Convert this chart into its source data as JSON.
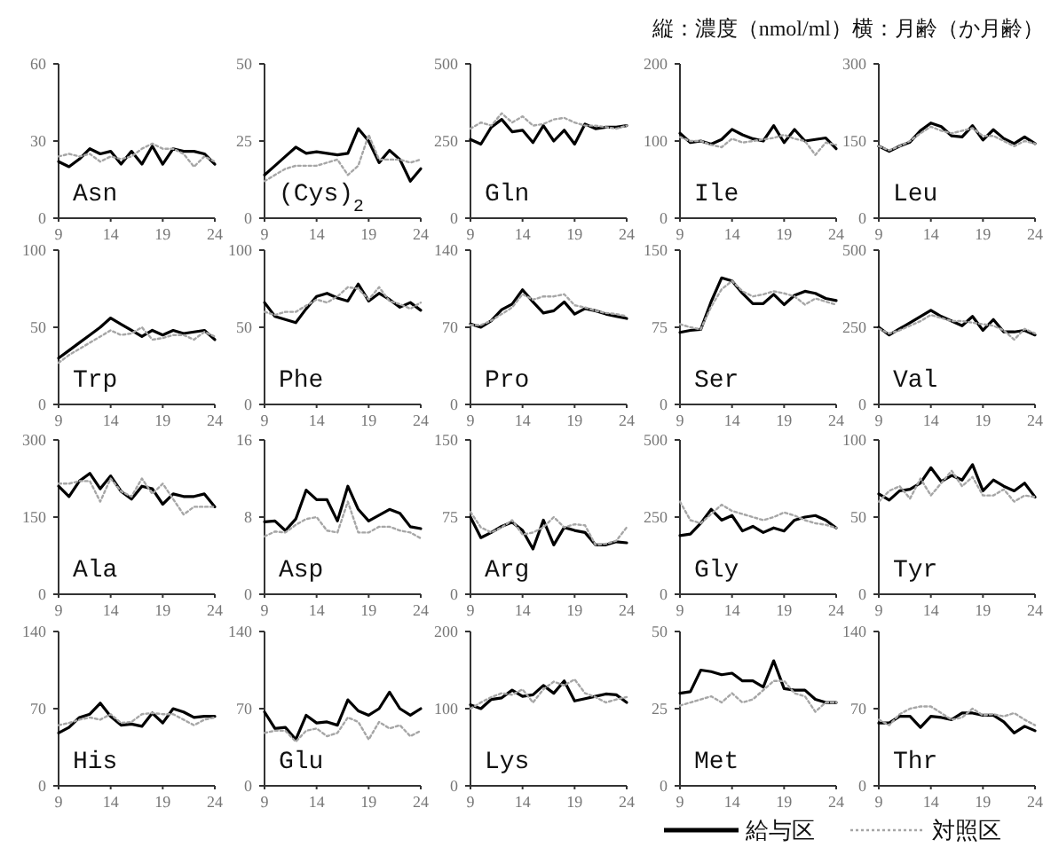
{
  "chart_data": [
    {
      "type": "line",
      "title": "Asn",
      "annotations": [
        "縦：濃度（nmol/ml）横：月齢（か月齢）"
      ],
      "x": [
        9,
        10,
        11,
        12,
        13,
        14,
        15,
        16,
        17,
        18,
        19,
        20,
        21,
        22,
        23,
        24
      ],
      "xlim": [
        9,
        24
      ],
      "xticks": [
        9,
        14,
        19,
        24
      ],
      "ylim": [
        0,
        60
      ],
      "yticks": [
        0,
        30,
        60
      ],
      "series": [
        {
          "color": "#000000",
          "line_style": "solid",
          "values": [
            22,
            20,
            23,
            27,
            25,
            26,
            21,
            26,
            21,
            28,
            21,
            27,
            26,
            26,
            25,
            21
          ]
        },
        {
          "color": "#a6a6a6",
          "line_style": "dotted",
          "values": [
            24,
            25,
            24,
            25,
            22,
            24,
            23,
            24,
            27,
            29,
            27,
            27,
            25,
            20,
            24,
            22
          ]
        }
      ]
    },
    {
      "type": "line",
      "title": "(Cys)$_{2}$",
      "x": [
        9,
        10,
        11,
        12,
        13,
        14,
        15,
        16,
        17,
        18,
        19,
        20,
        21,
        22,
        23,
        24
      ],
      "xlim": [
        9,
        24
      ],
      "xticks": [
        9,
        14,
        19,
        24
      ],
      "ylim": [
        0,
        50
      ],
      "yticks": [
        0,
        25,
        50
      ],
      "series": [
        {
          "color": "#000000",
          "line_style": "solid",
          "values": [
            14,
            17,
            20,
            23,
            21,
            21.5,
            21,
            20.5,
            21,
            29,
            25,
            18,
            22,
            19,
            12,
            16
          ]
        },
        {
          "color": "#a6a6a6",
          "line_style": "dotted",
          "values": [
            12,
            14,
            16,
            17,
            17,
            17,
            18,
            19,
            14,
            17,
            27,
            19,
            19,
            19,
            18,
            19
          ]
        }
      ]
    },
    {
      "type": "line",
      "title": "Gln",
      "x": [
        9,
        10,
        11,
        12,
        13,
        14,
        15,
        16,
        17,
        18,
        19,
        20,
        21,
        22,
        23,
        24
      ],
      "xlim": [
        9,
        24
      ],
      "xticks": [
        9,
        14,
        19,
        24
      ],
      "ylim": [
        0,
        500
      ],
      "yticks": [
        0,
        250,
        500
      ],
      "series": [
        {
          "color": "#000000",
          "line_style": "solid",
          "values": [
            255,
            240,
            295,
            320,
            280,
            285,
            245,
            300,
            250,
            285,
            240,
            305,
            290,
            295,
            295,
            300
          ]
        },
        {
          "color": "#a6a6a6",
          "line_style": "dotted",
          "values": [
            290,
            310,
            300,
            340,
            310,
            330,
            300,
            305,
            320,
            325,
            310,
            300,
            300,
            295,
            290,
            300
          ]
        }
      ]
    },
    {
      "type": "line",
      "title": "Ile",
      "x": [
        9,
        10,
        11,
        12,
        13,
        14,
        15,
        16,
        17,
        18,
        19,
        20,
        21,
        22,
        23,
        24
      ],
      "xlim": [
        9,
        24
      ],
      "xticks": [
        9,
        14,
        19,
        24
      ],
      "ylim": [
        0,
        200
      ],
      "yticks": [
        0,
        100,
        200
      ],
      "series": [
        {
          "color": "#000000",
          "line_style": "solid",
          "values": [
            110,
            98,
            100,
            96,
            102,
            115,
            108,
            103,
            100,
            120,
            98,
            115,
            100,
            102,
            104,
            90
          ]
        },
        {
          "color": "#a6a6a6",
          "line_style": "dotted",
          "values": [
            105,
            100,
            100,
            95,
            92,
            103,
            98,
            100,
            102,
            104,
            108,
            103,
            100,
            82,
            98,
            95
          ]
        }
      ]
    },
    {
      "type": "line",
      "title": "Leu",
      "x": [
        9,
        10,
        11,
        12,
        13,
        14,
        15,
        16,
        17,
        18,
        19,
        20,
        21,
        22,
        23,
        24
      ],
      "xlim": [
        9,
        24
      ],
      "xticks": [
        9,
        14,
        19,
        24
      ],
      "ylim": [
        0,
        300
      ],
      "yticks": [
        0,
        150,
        300
      ],
      "series": [
        {
          "color": "#000000",
          "line_style": "solid",
          "values": [
            140,
            130,
            140,
            148,
            170,
            185,
            178,
            160,
            158,
            180,
            152,
            172,
            155,
            145,
            158,
            145
          ]
        },
        {
          "color": "#a6a6a6",
          "line_style": "dotted",
          "values": [
            140,
            132,
            140,
            150,
            165,
            178,
            170,
            165,
            170,
            175,
            160,
            160,
            150,
            140,
            150,
            145
          ]
        }
      ]
    },
    {
      "type": "line",
      "title": "Trp",
      "x": [
        9,
        10,
        11,
        12,
        13,
        14,
        15,
        16,
        17,
        18,
        19,
        20,
        21,
        22,
        23,
        24
      ],
      "xlim": [
        9,
        24
      ],
      "xticks": [
        9,
        14,
        19,
        24
      ],
      "ylim": [
        0,
        100
      ],
      "yticks": [
        0,
        50,
        100
      ],
      "series": [
        {
          "color": "#000000",
          "line_style": "solid",
          "values": [
            30,
            35,
            40,
            45,
            50,
            56,
            52,
            48,
            44,
            48,
            45,
            48,
            46,
            47,
            48,
            42
          ]
        },
        {
          "color": "#a6a6a6",
          "line_style": "dotted",
          "values": [
            27,
            32,
            36,
            40,
            44,
            48,
            45,
            46,
            50,
            42,
            43,
            45,
            45,
            42,
            47,
            44
          ]
        }
      ]
    },
    {
      "type": "line",
      "title": "Phe",
      "x": [
        9,
        10,
        11,
        12,
        13,
        14,
        15,
        16,
        17,
        18,
        19,
        20,
        21,
        22,
        23,
        24
      ],
      "xlim": [
        9,
        24
      ],
      "xticks": [
        9,
        14,
        19,
        24
      ],
      "ylim": [
        0,
        100
      ],
      "yticks": [
        0,
        50,
        100
      ],
      "series": [
        {
          "color": "#000000",
          "line_style": "solid",
          "values": [
            66,
            57,
            55,
            53,
            62,
            70,
            72,
            69,
            67,
            78,
            67,
            72,
            68,
            63,
            66,
            61
          ]
        },
        {
          "color": "#a6a6a6",
          "line_style": "dotted",
          "values": [
            60,
            58,
            60,
            60,
            64,
            68,
            66,
            70,
            76,
            75,
            68,
            76,
            67,
            65,
            62,
            66
          ]
        }
      ]
    },
    {
      "type": "line",
      "title": "Pro",
      "x": [
        9,
        10,
        11,
        12,
        13,
        14,
        15,
        16,
        17,
        18,
        19,
        20,
        21,
        22,
        23,
        24
      ],
      "xlim": [
        9,
        24
      ],
      "xticks": [
        9,
        14,
        19,
        24
      ],
      "ylim": [
        0,
        140
      ],
      "yticks": [
        0,
        70,
        140
      ],
      "series": [
        {
          "color": "#000000",
          "line_style": "solid",
          "values": [
            73,
            70,
            76,
            86,
            91,
            104,
            93,
            83,
            85,
            93,
            82,
            87,
            85,
            82,
            80,
            78
          ]
        },
        {
          "color": "#a6a6a6",
          "line_style": "dotted",
          "values": [
            72,
            72,
            76,
            82,
            88,
            100,
            95,
            98,
            98,
            100,
            90,
            88,
            85,
            83,
            82,
            80
          ]
        }
      ]
    },
    {
      "type": "line",
      "title": "Ser",
      "x": [
        9,
        10,
        11,
        12,
        13,
        14,
        15,
        16,
        17,
        18,
        19,
        20,
        21,
        22,
        23,
        24
      ],
      "xlim": [
        9,
        24
      ],
      "xticks": [
        9,
        14,
        19,
        24
      ],
      "ylim": [
        0,
        150
      ],
      "yticks": [
        0,
        75,
        150
      ],
      "series": [
        {
          "color": "#000000",
          "line_style": "solid",
          "values": [
            70,
            72,
            73,
            100,
            123,
            120,
            108,
            98,
            98,
            107,
            97,
            106,
            110,
            108,
            103,
            101
          ]
        },
        {
          "color": "#a6a6a6",
          "line_style": "dotted",
          "values": [
            78,
            75,
            73,
            95,
            112,
            120,
            110,
            105,
            107,
            110,
            108,
            105,
            97,
            103,
            100,
            97
          ]
        }
      ]
    },
    {
      "type": "line",
      "title": "Val",
      "x": [
        9,
        10,
        11,
        12,
        13,
        14,
        15,
        16,
        17,
        18,
        19,
        20,
        21,
        22,
        23,
        24
      ],
      "xlim": [
        9,
        24
      ],
      "xticks": [
        9,
        14,
        19,
        24
      ],
      "ylim": [
        0,
        500
      ],
      "yticks": [
        0,
        250,
        500
      ],
      "series": [
        {
          "color": "#000000",
          "line_style": "solid",
          "values": [
            250,
            225,
            245,
            265,
            285,
            305,
            285,
            270,
            255,
            285,
            240,
            275,
            235,
            235,
            240,
            225
          ]
        },
        {
          "color": "#a6a6a6",
          "line_style": "dotted",
          "values": [
            245,
            230,
            240,
            255,
            270,
            290,
            280,
            270,
            270,
            265,
            260,
            255,
            240,
            210,
            245,
            230
          ]
        }
      ]
    },
    {
      "type": "line",
      "title": "Ala",
      "x": [
        9,
        10,
        11,
        12,
        13,
        14,
        15,
        16,
        17,
        18,
        19,
        20,
        21,
        22,
        23,
        24
      ],
      "xlim": [
        9,
        24
      ],
      "xticks": [
        9,
        14,
        19,
        24
      ],
      "ylim": [
        0,
        300
      ],
      "yticks": [
        0,
        150,
        300
      ],
      "series": [
        {
          "color": "#000000",
          "line_style": "solid",
          "values": [
            210,
            190,
            220,
            235,
            205,
            230,
            200,
            185,
            210,
            205,
            175,
            195,
            190,
            190,
            195,
            170
          ]
        },
        {
          "color": "#a6a6a6",
          "line_style": "dotted",
          "values": [
            215,
            215,
            220,
            220,
            180,
            225,
            200,
            190,
            225,
            195,
            215,
            185,
            155,
            170,
            170,
            170
          ]
        }
      ]
    },
    {
      "type": "line",
      "title": "Asp",
      "x": [
        9,
        10,
        11,
        12,
        13,
        14,
        15,
        16,
        17,
        18,
        19,
        20,
        21,
        22,
        23,
        24
      ],
      "xlim": [
        9,
        24
      ],
      "xticks": [
        9,
        14,
        19,
        24
      ],
      "ylim": [
        0,
        16
      ],
      "yticks": [
        0,
        8,
        16
      ],
      "series": [
        {
          "color": "#000000",
          "line_style": "solid",
          "values": [
            7.5,
            7.6,
            6.6,
            7.8,
            10.8,
            9.8,
            9.8,
            7.6,
            11.2,
            8.8,
            7.6,
            8.2,
            8.8,
            8.4,
            7.0,
            6.8
          ]
        },
        {
          "color": "#a6a6a6",
          "line_style": "dotted",
          "values": [
            6.0,
            6.5,
            6.4,
            7.2,
            7.8,
            8.0,
            6.6,
            6.4,
            9.6,
            6.4,
            6.4,
            7.0,
            7.0,
            6.6,
            6.4,
            5.8
          ]
        }
      ]
    },
    {
      "type": "line",
      "title": "Arg",
      "x": [
        9,
        10,
        11,
        12,
        13,
        14,
        15,
        16,
        17,
        18,
        19,
        20,
        21,
        22,
        23,
        24
      ],
      "xlim": [
        9,
        24
      ],
      "xticks": [
        9,
        14,
        19,
        24
      ],
      "ylim": [
        0,
        150
      ],
      "yticks": [
        0,
        75,
        150
      ],
      "series": [
        {
          "color": "#000000",
          "line_style": "solid",
          "values": [
            75,
            55,
            60,
            66,
            70,
            62,
            44,
            72,
            48,
            65,
            62,
            60,
            48,
            48,
            51,
            50
          ]
        },
        {
          "color": "#a6a6a6",
          "line_style": "dotted",
          "values": [
            80,
            65,
            60,
            65,
            72,
            58,
            60,
            65,
            75,
            65,
            68,
            67,
            48,
            49,
            52,
            65
          ]
        }
      ]
    },
    {
      "type": "line",
      "title": "Gly",
      "x": [
        9,
        10,
        11,
        12,
        13,
        14,
        15,
        16,
        17,
        18,
        19,
        20,
        21,
        22,
        23,
        24
      ],
      "xlim": [
        9,
        24
      ],
      "xticks": [
        9,
        14,
        19,
        24
      ],
      "ylim": [
        0,
        500
      ],
      "yticks": [
        0,
        250,
        500
      ],
      "series": [
        {
          "color": "#000000",
          "line_style": "solid",
          "values": [
            190,
            195,
            230,
            275,
            240,
            255,
            205,
            220,
            200,
            215,
            205,
            240,
            250,
            255,
            240,
            215
          ]
        },
        {
          "color": "#a6a6a6",
          "line_style": "dotted",
          "values": [
            300,
            240,
            230,
            260,
            290,
            270,
            260,
            250,
            240,
            250,
            265,
            255,
            240,
            230,
            225,
            215
          ]
        }
      ]
    },
    {
      "type": "line",
      "title": "Tyr",
      "x": [
        9,
        10,
        11,
        12,
        13,
        14,
        15,
        16,
        17,
        18,
        19,
        20,
        21,
        22,
        23,
        24
      ],
      "xlim": [
        9,
        24
      ],
      "xticks": [
        9,
        14,
        19,
        24
      ],
      "ylim": [
        0,
        100
      ],
      "yticks": [
        0,
        50,
        100
      ],
      "series": [
        {
          "color": "#000000",
          "line_style": "solid",
          "values": [
            65,
            61,
            67,
            68,
            72,
            82,
            73,
            77,
            74,
            84,
            67,
            74,
            70,
            67,
            72,
            63
          ]
        },
        {
          "color": "#a6a6a6",
          "line_style": "dotted",
          "values": [
            60,
            67,
            70,
            62,
            75,
            64,
            72,
            80,
            70,
            76,
            64,
            64,
            68,
            60,
            64,
            63
          ]
        }
      ]
    },
    {
      "type": "line",
      "title": "His",
      "x": [
        9,
        10,
        11,
        12,
        13,
        14,
        15,
        16,
        17,
        18,
        19,
        20,
        21,
        22,
        23,
        24
      ],
      "xlim": [
        9,
        24
      ],
      "xticks": [
        9,
        14,
        19,
        24
      ],
      "ylim": [
        0,
        140
      ],
      "yticks": [
        0,
        70,
        140
      ],
      "series": [
        {
          "color": "#000000",
          "line_style": "solid",
          "values": [
            48,
            53,
            62,
            65,
            75,
            63,
            55,
            56,
            54,
            66,
            57,
            70,
            67,
            62,
            63,
            63
          ]
        },
        {
          "color": "#a6a6a6",
          "line_style": "dotted",
          "values": [
            55,
            57,
            60,
            62,
            60,
            65,
            57,
            58,
            65,
            66,
            65,
            65,
            60,
            55,
            60,
            62
          ]
        }
      ]
    },
    {
      "type": "line",
      "title": "Glu",
      "x": [
        9,
        10,
        11,
        12,
        13,
        14,
        15,
        16,
        17,
        18,
        19,
        20,
        21,
        22,
        23,
        24
      ],
      "xlim": [
        9,
        24
      ],
      "xticks": [
        9,
        14,
        19,
        24
      ],
      "ylim": [
        0,
        140
      ],
      "yticks": [
        0,
        70,
        140
      ],
      "series": [
        {
          "color": "#000000",
          "line_style": "solid",
          "values": [
            67,
            52,
            53,
            42,
            64,
            57,
            58,
            55,
            78,
            68,
            64,
            70,
            85,
            70,
            64,
            70
          ]
        },
        {
          "color": "#a6a6a6",
          "line_style": "dotted",
          "values": [
            48,
            50,
            50,
            40,
            50,
            52,
            45,
            48,
            62,
            58,
            42,
            58,
            52,
            55,
            45,
            50
          ]
        }
      ]
    },
    {
      "type": "line",
      "title": "Lys",
      "x": [
        9,
        10,
        11,
        12,
        13,
        14,
        15,
        16,
        17,
        18,
        19,
        20,
        21,
        22,
        23,
        24
      ],
      "xlim": [
        9,
        24
      ],
      "xticks": [
        9,
        14,
        19,
        24
      ],
      "ylim": [
        0,
        200
      ],
      "yticks": [
        0,
        100,
        200
      ],
      "series": [
        {
          "color": "#000000",
          "line_style": "solid",
          "values": [
            105,
            100,
            112,
            114,
            124,
            116,
            118,
            130,
            120,
            136,
            110,
            113,
            116,
            119,
            118,
            108
          ]
        },
        {
          "color": "#a6a6a6",
          "line_style": "dotted",
          "values": [
            100,
            108,
            115,
            120,
            118,
            125,
            108,
            125,
            135,
            130,
            138,
            120,
            115,
            108,
            112,
            115
          ]
        }
      ]
    },
    {
      "type": "line",
      "title": "Met",
      "legend": "bottom right",
      "x": [
        9,
        10,
        11,
        12,
        13,
        14,
        15,
        16,
        17,
        18,
        19,
        20,
        21,
        22,
        23,
        24
      ],
      "xlim": [
        9,
        24
      ],
      "xticks": [
        9,
        14,
        19,
        24
      ],
      "ylim": [
        0,
        50
      ],
      "yticks": [
        0,
        25,
        50
      ],
      "series": [
        {
          "name": "給与区",
          "color": "#000000",
          "line_style": "solid",
          "values": [
            30,
            30.5,
            37.5,
            37,
            36,
            36.5,
            34,
            34,
            32,
            40.5,
            31.5,
            31,
            31,
            28,
            27,
            27
          ]
        },
        {
          "name": "対照区",
          "color": "#a6a6a6",
          "line_style": "dotted",
          "values": [
            26,
            27,
            28,
            29,
            27,
            30,
            27,
            28,
            31,
            34,
            34,
            30,
            29,
            24,
            27,
            27
          ]
        }
      ]
    },
    {
      "type": "line",
      "title": "Thr",
      "x": [
        9,
        10,
        11,
        12,
        13,
        14,
        15,
        16,
        17,
        18,
        19,
        20,
        21,
        22,
        23,
        24
      ],
      "xlim": [
        9,
        24
      ],
      "xticks": [
        9,
        14,
        19,
        24
      ],
      "ylim": [
        0,
        140
      ],
      "yticks": [
        0,
        70,
        140
      ],
      "series": [
        {
          "color": "#000000",
          "line_style": "solid",
          "values": [
            57,
            57,
            63,
            63,
            53,
            63,
            62,
            60,
            66,
            66,
            64,
            64,
            58,
            48,
            54,
            50
          ]
        },
        {
          "color": "#a6a6a6",
          "line_style": "dotted",
          "values": [
            60,
            55,
            65,
            70,
            72,
            72,
            66,
            60,
            62,
            70,
            64,
            65,
            63,
            66,
            60,
            55
          ]
        }
      ]
    }
  ]
}
